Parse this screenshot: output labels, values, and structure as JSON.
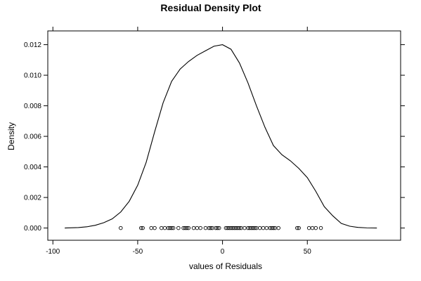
{
  "chart_data": {
    "type": "line",
    "title": "Residual Density Plot",
    "xlabel": "values of Residuals",
    "ylabel": "Density",
    "xlim": [
      -103,
      105
    ],
    "ylim": [
      -0.0008,
      0.0129
    ],
    "x_ticks": [
      -100,
      -50,
      0,
      50
    ],
    "x_tick_labels": [
      "-100",
      "-50",
      "0",
      "50"
    ],
    "y_ticks": [
      0.0,
      0.002,
      0.004,
      0.006,
      0.008,
      0.01,
      0.012
    ],
    "y_tick_labels": [
      "0.000",
      "0.002",
      "0.004",
      "0.006",
      "0.008",
      "0.010",
      "0.012"
    ],
    "grid": false,
    "series": [
      {
        "type": "line",
        "x": [
          -93,
          -85,
          -80,
          -75,
          -70,
          -65,
          -60,
          -55,
          -50,
          -45,
          -40,
          -35,
          -30,
          -25,
          -20,
          -15,
          -10,
          -5,
          0,
          5,
          10,
          15,
          20,
          25,
          30,
          35,
          40,
          45,
          50,
          55,
          60,
          65,
          70,
          75,
          80,
          85,
          91
        ],
        "y": [
          0.0,
          3e-05,
          8e-05,
          0.00018,
          0.00035,
          0.0006,
          0.00105,
          0.00175,
          0.0028,
          0.0043,
          0.0063,
          0.0082,
          0.0096,
          0.0104,
          0.0109,
          0.0113,
          0.0116,
          0.0119,
          0.012,
          0.0117,
          0.0108,
          0.0095,
          0.008,
          0.0066,
          0.0054,
          0.0048,
          0.0044,
          0.0039,
          0.0033,
          0.0024,
          0.0014,
          0.0008,
          0.0003,
          0.00012,
          4e-05,
          1e-05,
          0.0
        ]
      },
      {
        "type": "scatter",
        "x": [
          -60,
          -48,
          -47,
          -42,
          -40,
          -36,
          -34,
          -32,
          -31,
          -30,
          -29,
          -26,
          -23,
          -22,
          -21,
          -20,
          -17,
          -15,
          -13,
          -10,
          -8,
          -7,
          -6,
          -4,
          -3,
          -2,
          2,
          3,
          4,
          5,
          6,
          7,
          8,
          9,
          10,
          11,
          13,
          15,
          16,
          17,
          18,
          19,
          20,
          22,
          24,
          26,
          28,
          29,
          30,
          31,
          33,
          44,
          45,
          51,
          53,
          55,
          58
        ],
        "y": [
          0.0,
          0.0,
          0.0,
          0.0,
          0.0,
          0.0,
          0.0,
          0.0,
          0.0,
          0.0,
          0.0,
          0.0,
          0.0,
          0.0,
          0.0,
          0.0,
          0.0,
          0.0,
          0.0,
          0.0,
          0.0,
          0.0,
          0.0,
          0.0,
          0.0,
          0.0,
          0.0,
          0.0,
          0.0,
          0.0,
          0.0,
          0.0,
          0.0,
          0.0,
          0.0,
          0.0,
          0.0,
          0.0,
          0.0,
          0.0,
          0.0,
          0.0,
          0.0,
          0.0,
          0.0,
          0.0,
          0.0,
          0.0,
          0.0,
          0.0,
          0.0,
          0.0,
          0.0,
          0.0,
          0.0,
          0.0,
          0.0
        ]
      }
    ]
  }
}
